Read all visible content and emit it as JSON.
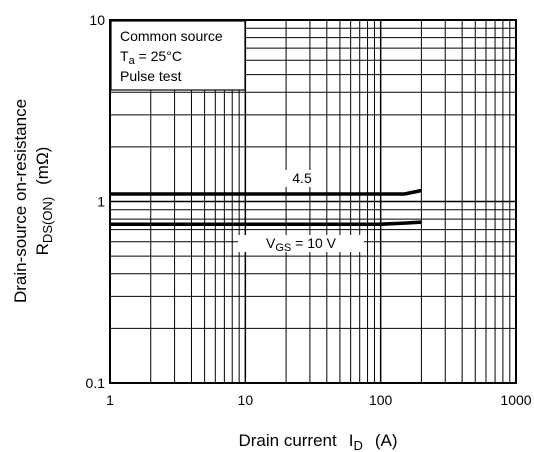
{
  "chart_data": {
    "type": "line",
    "title": "",
    "xscale": "log",
    "yscale": "log",
    "xlim": [
      1,
      1000
    ],
    "ylim": [
      0.1,
      10
    ],
    "grid": true,
    "x_ticks": [
      {
        "value": 1,
        "label": "1"
      },
      {
        "value": 10,
        "label": "10"
      },
      {
        "value": 100,
        "label": "100"
      },
      {
        "value": 1000,
        "label": "1000"
      }
    ],
    "y_ticks": [
      {
        "value": 0.1,
        "label": "0.1"
      },
      {
        "value": 1,
        "label": "1"
      },
      {
        "value": 10,
        "label": "10"
      }
    ],
    "xlabel": {
      "main": "Drain current",
      "symbol": "I",
      "sub": "D",
      "unit": "(A)"
    },
    "ylabel": {
      "line1": "Drain-source on-resistance",
      "symbol": "R",
      "sub": "DS(ON)",
      "unit": "(mΩ)"
    },
    "conditions": {
      "line1": "Common source",
      "line2_symbol": "T",
      "line2_sub": "a",
      "line2_rest": " = 25°C",
      "line3": "Pulse test"
    },
    "series": [
      {
        "label": "4.5",
        "x": [
          1,
          10,
          50,
          100,
          150,
          200
        ],
        "y": [
          1.1,
          1.1,
          1.1,
          1.1,
          1.1,
          1.15
        ]
      },
      {
        "label_symbol": "V",
        "label_sub": "GS",
        "label_rest": " = 10 V",
        "x": [
          1,
          10,
          50,
          100,
          150,
          200
        ],
        "y": [
          0.75,
          0.75,
          0.75,
          0.75,
          0.76,
          0.77
        ]
      }
    ]
  }
}
